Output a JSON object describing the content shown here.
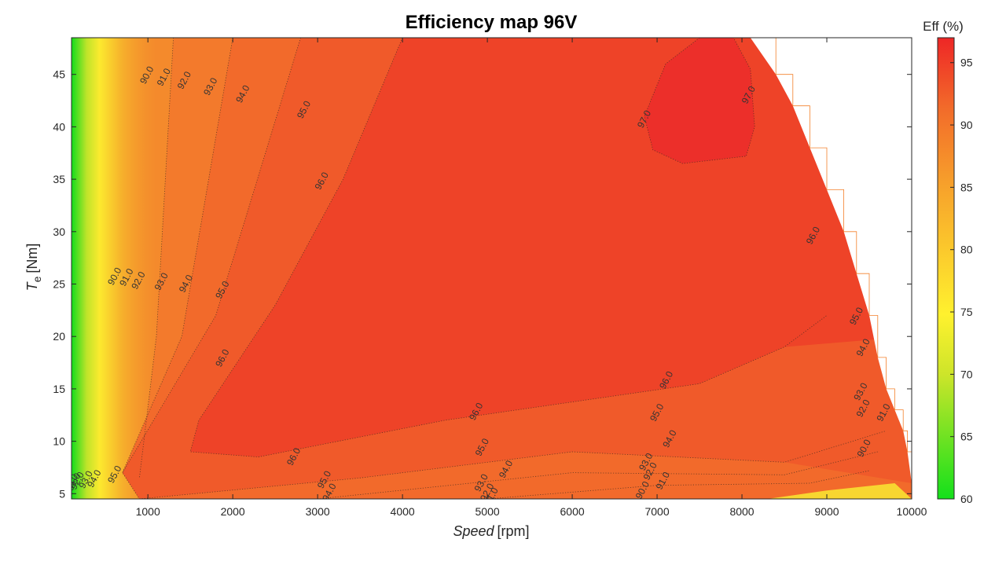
{
  "chart_data": {
    "type": "contour",
    "title": "Efficiency map 96V",
    "xlabel": {
      "italic": "Speed",
      "unit": "[rpm]"
    },
    "ylabel": {
      "italic": "T",
      "sub": "e",
      "unit": "[Nm]"
    },
    "xlim": [
      100,
      10000
    ],
    "ylim": [
      4.5,
      48.5
    ],
    "xticks": [
      1000,
      2000,
      3000,
      4000,
      5000,
      6000,
      7000,
      8000,
      9000,
      10000
    ],
    "yticks": [
      5,
      10,
      15,
      20,
      25,
      30,
      35,
      40,
      45
    ],
    "colorbar": {
      "title": "Eff (%)",
      "range": [
        60,
        97
      ],
      "ticks": [
        60,
        65,
        70,
        75,
        80,
        85,
        90,
        95
      ],
      "colormap": "green-yellow-orange-red"
    },
    "contour_levels": [
      90.0,
      91.0,
      92.0,
      93.0,
      94.0,
      95.0,
      96.0,
      97.0
    ],
    "labels": [
      {
        "text": "90.0",
        "x": 1020,
        "y": 44.8
      },
      {
        "text": "91.0",
        "x": 1220,
        "y": 44.6
      },
      {
        "text": "92.0",
        "x": 1460,
        "y": 44.3
      },
      {
        "text": "93.0",
        "x": 1770,
        "y": 43.7
      },
      {
        "text": "94.0",
        "x": 2150,
        "y": 43.0
      },
      {
        "text": "95.0",
        "x": 2870,
        "y": 41.5
      },
      {
        "text": "96.0",
        "x": 3080,
        "y": 34.7
      },
      {
        "text": "97.0",
        "x": 6880,
        "y": 40.6
      },
      {
        "text": "97.0",
        "x": 8110,
        "y": 42.9
      },
      {
        "text": "90.0",
        "x": 640,
        "y": 25.6
      },
      {
        "text": "91.0",
        "x": 780,
        "y": 25.5
      },
      {
        "text": "92.0",
        "x": 920,
        "y": 25.2
      },
      {
        "text": "93.0",
        "x": 1190,
        "y": 25.1
      },
      {
        "text": "94.0",
        "x": 1480,
        "y": 24.9
      },
      {
        "text": "95.0",
        "x": 1910,
        "y": 24.3
      },
      {
        "text": "96.0",
        "x": 8870,
        "y": 29.5
      },
      {
        "text": "95.0",
        "x": 9380,
        "y": 21.8
      },
      {
        "text": "94.0",
        "x": 9460,
        "y": 18.8
      },
      {
        "text": "93.0",
        "x": 9430,
        "y": 14.6
      },
      {
        "text": "92.0",
        "x": 9460,
        "y": 13.0
      },
      {
        "text": "91.0",
        "x": 9700,
        "y": 12.6
      },
      {
        "text": "90.0",
        "x": 9470,
        "y": 9.2
      },
      {
        "text": "96.0",
        "x": 1910,
        "y": 17.8
      },
      {
        "text": "96.0",
        "x": 7140,
        "y": 15.7
      },
      {
        "text": "96.0",
        "x": 4900,
        "y": 12.7
      },
      {
        "text": "95.0",
        "x": 7030,
        "y": 12.6
      },
      {
        "text": "94.0",
        "x": 7180,
        "y": 10.1
      },
      {
        "text": "96.0",
        "x": 2750,
        "y": 8.4
      },
      {
        "text": "95.0",
        "x": 4970,
        "y": 9.3
      },
      {
        "text": "94.0",
        "x": 5250,
        "y": 7.2
      },
      {
        "text": "93.0",
        "x": 6900,
        "y": 7.9
      },
      {
        "text": "92.0",
        "x": 6950,
        "y": 7.0
      },
      {
        "text": "91.0",
        "x": 7100,
        "y": 6.1
      },
      {
        "text": "90.0",
        "x": 6860,
        "y": 5.2
      },
      {
        "text": "95.0",
        "x": 3110,
        "y": 6.2
      },
      {
        "text": "94.0",
        "x": 3170,
        "y": 5.0
      },
      {
        "text": "93.0",
        "x": 4960,
        "y": 5.9
      },
      {
        "text": "92.0",
        "x": 5030,
        "y": 5.0
      },
      {
        "text": "91.0",
        "x": 5080,
        "y": 4.6
      },
      {
        "text": "95.0",
        "x": 640,
        "y": 6.7
      },
      {
        "text": "94.0",
        "x": 400,
        "y": 6.3
      },
      {
        "text": "93.0",
        "x": 300,
        "y": 6.2
      },
      {
        "text": "92.0",
        "x": 200,
        "y": 6.1
      },
      {
        "text": "91.0",
        "x": 160,
        "y": 6.0
      },
      {
        "text": "90.0",
        "x": 130,
        "y": 5.9
      }
    ]
  }
}
